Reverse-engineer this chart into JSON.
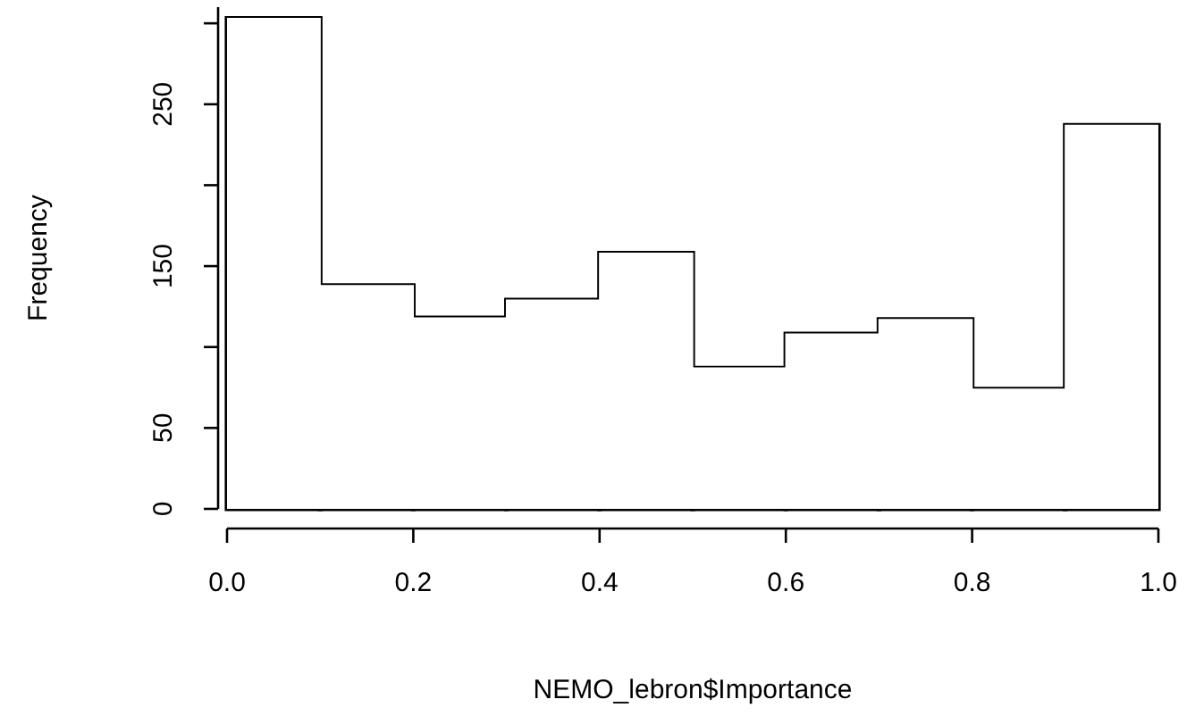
{
  "chart_data": {
    "type": "histogram",
    "xlabel": "NEMO_lebron$Importance",
    "ylabel": "Frequency",
    "bins": [
      0,
      0.1,
      0.2,
      0.3,
      0.4,
      0.5,
      0.6,
      0.7,
      0.8,
      0.9,
      1.0
    ],
    "values": [
      303,
      138,
      118,
      129,
      158,
      87,
      108,
      117,
      74,
      237
    ],
    "color": "#ffffff",
    "xlim": [
      0,
      1
    ],
    "xticks": [
      {
        "value": 0,
        "label": "0.0"
      },
      0.2,
      0.4,
      0.6,
      0.8,
      {
        "value": 1,
        "label": "1.0"
      }
    ],
    "ylim": [
      0,
      310
    ],
    "yticks": [
      0,
      50,
      {
        "value": 100,
        "label": null
      },
      150,
      {
        "value": 200,
        "label": null
      },
      250,
      {
        "value": 300,
        "label": null
      }
    ],
    "grid": false,
    "legend": false
  }
}
